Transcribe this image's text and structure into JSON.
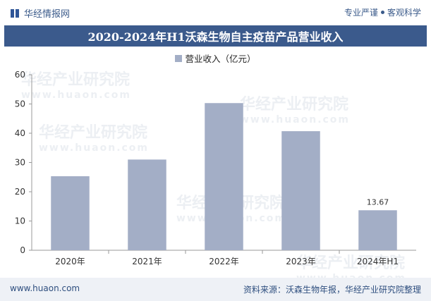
{
  "header": {
    "brand": "华经情报网",
    "tagline_left": "专业严谨",
    "tagline_right": "客观科学"
  },
  "title": "2020-2024年H1沃森生物自主疫苗产品营业收入",
  "legend_label": "营业收入（亿元）",
  "watermark": {
    "cn": "华经产业研究院",
    "en": "www.huaon.com"
  },
  "colors": {
    "bar": "#a3aec6",
    "title_bg": "#3b5a8c",
    "footer_bg": "#eef1f6"
  },
  "chart_data": {
    "type": "bar",
    "title": "2020-2024年H1沃森生物自主疫苗产品营业收入",
    "categories": [
      "2020年",
      "2021年",
      "2022年",
      "2023年",
      "2024年H1"
    ],
    "series": [
      {
        "name": "营业收入（亿元）",
        "values": [
          25.3,
          31.0,
          50.3,
          40.7,
          13.67
        ]
      }
    ],
    "data_labels": [
      null,
      null,
      null,
      null,
      "13.67"
    ],
    "ylim": [
      0,
      60
    ],
    "yticks": [
      "0",
      "10",
      "20",
      "30",
      "40",
      "50",
      "60"
    ],
    "xlabel": "",
    "ylabel": "",
    "grid": false,
    "legend": "top-center"
  },
  "footer": {
    "url": "www.huaon.com",
    "source": "资料来源：沃森生物年报，华经产业研究院整理"
  }
}
